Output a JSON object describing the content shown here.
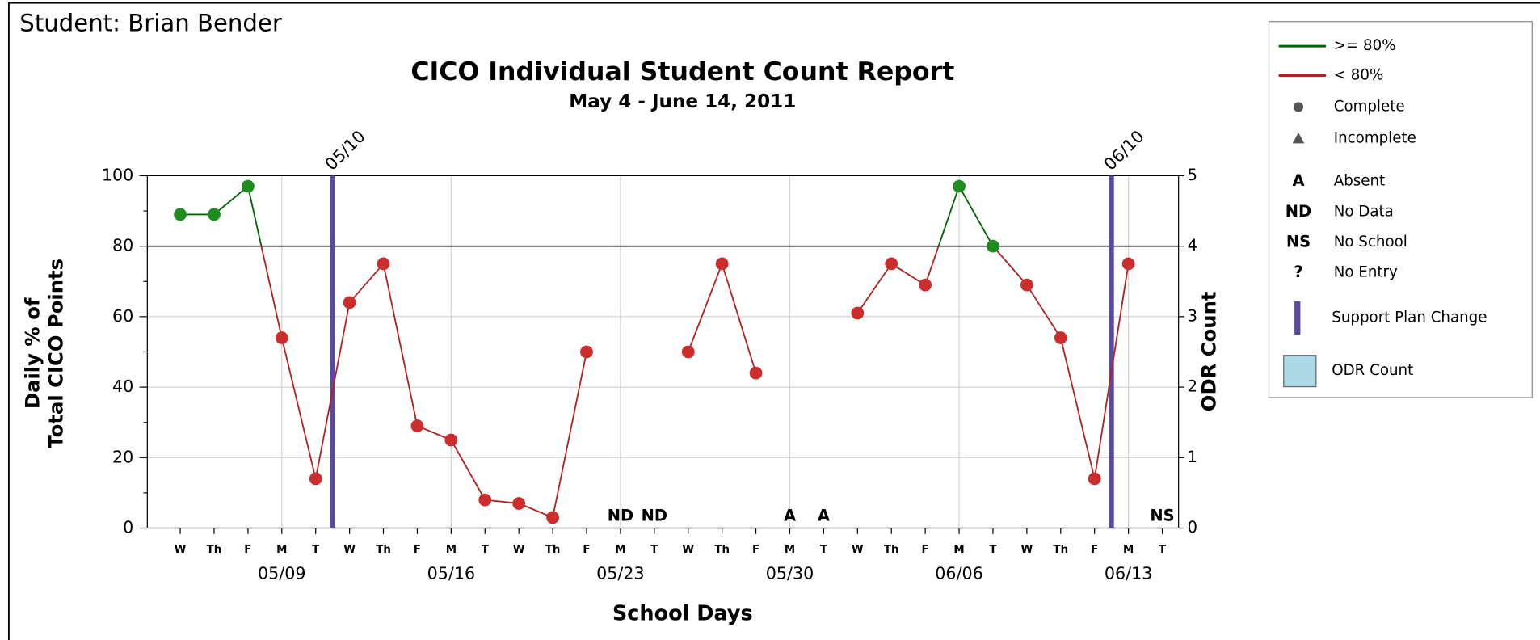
{
  "chart_data": {
    "type": "line",
    "student": "Student: Brian Bender",
    "title": "CICO Individual Student Count Report",
    "subtitle": "May 4 - June 14, 2011",
    "xlabel": "School Days",
    "ylabel": [
      "Daily % of",
      "Total CICO Points"
    ],
    "y2label": "ODR Count",
    "categories": [
      "W",
      "Th",
      "F",
      "M",
      "T",
      "W",
      "Th",
      "F",
      "M",
      "T",
      "W",
      "Th",
      "F",
      "M",
      "T",
      "W",
      "Th",
      "F",
      "M",
      "T",
      "W",
      "Th",
      "F",
      "M",
      "T",
      "W",
      "Th",
      "F",
      "M",
      "T"
    ],
    "week_labels": [
      null,
      null,
      null,
      "05/09",
      null,
      null,
      null,
      null,
      "05/16",
      null,
      null,
      null,
      null,
      "05/23",
      null,
      null,
      null,
      null,
      "05/30",
      null,
      null,
      null,
      null,
      "06/06",
      null,
      null,
      null,
      null,
      "06/13",
      null
    ],
    "status": [
      null,
      null,
      null,
      null,
      null,
      null,
      null,
      null,
      null,
      null,
      null,
      null,
      null,
      "ND",
      "ND",
      null,
      null,
      null,
      "A",
      "A",
      null,
      null,
      null,
      null,
      null,
      null,
      null,
      null,
      null,
      "NS"
    ],
    "series": [
      {
        "name": "Daily %",
        "values": [
          89,
          89,
          97,
          54,
          14,
          64,
          75,
          29,
          25,
          8,
          7,
          3,
          50,
          null,
          null,
          50,
          75,
          44,
          null,
          null,
          61,
          75,
          69,
          97,
          80,
          69,
          54,
          14,
          75,
          null
        ]
      }
    ],
    "threshold": 80,
    "above_color": "#006400",
    "below_color": "#b22222",
    "above_marker_color": "#1e8c1e",
    "below_marker_color": "#cc2e2e",
    "plan_changes": [
      "05/10",
      "06/10"
    ],
    "plan_color": "#5b4a9b",
    "odr_color": "#add8e6",
    "ylim": [
      0,
      100
    ],
    "yticks": [
      0,
      20,
      40,
      60,
      80,
      100
    ],
    "y2lim": [
      0,
      5
    ],
    "y2ticks": [
      0,
      1,
      2,
      3,
      4,
      5
    ],
    "grid": true,
    "legend": [
      {
        "marker": "line",
        "color": "#006400",
        "label": ">= 80%"
      },
      {
        "marker": "line",
        "color": "#b22222",
        "label": "< 80%"
      },
      {
        "marker": "circle",
        "color": "#555555",
        "label": "Complete"
      },
      {
        "marker": "triangle",
        "color": "#555555",
        "label": "Incomplete"
      },
      {
        "symbol": "A",
        "label": "Absent"
      },
      {
        "symbol": "ND",
        "label": "No Data"
      },
      {
        "symbol": "NS",
        "label": "No School"
      },
      {
        "symbol": "?",
        "label": "No Entry"
      },
      {
        "marker": "bar",
        "color": "#5b4a9b",
        "label": "Support Plan Change"
      },
      {
        "marker": "box",
        "color": "#add8e6",
        "label": "ODR Count"
      }
    ]
  }
}
